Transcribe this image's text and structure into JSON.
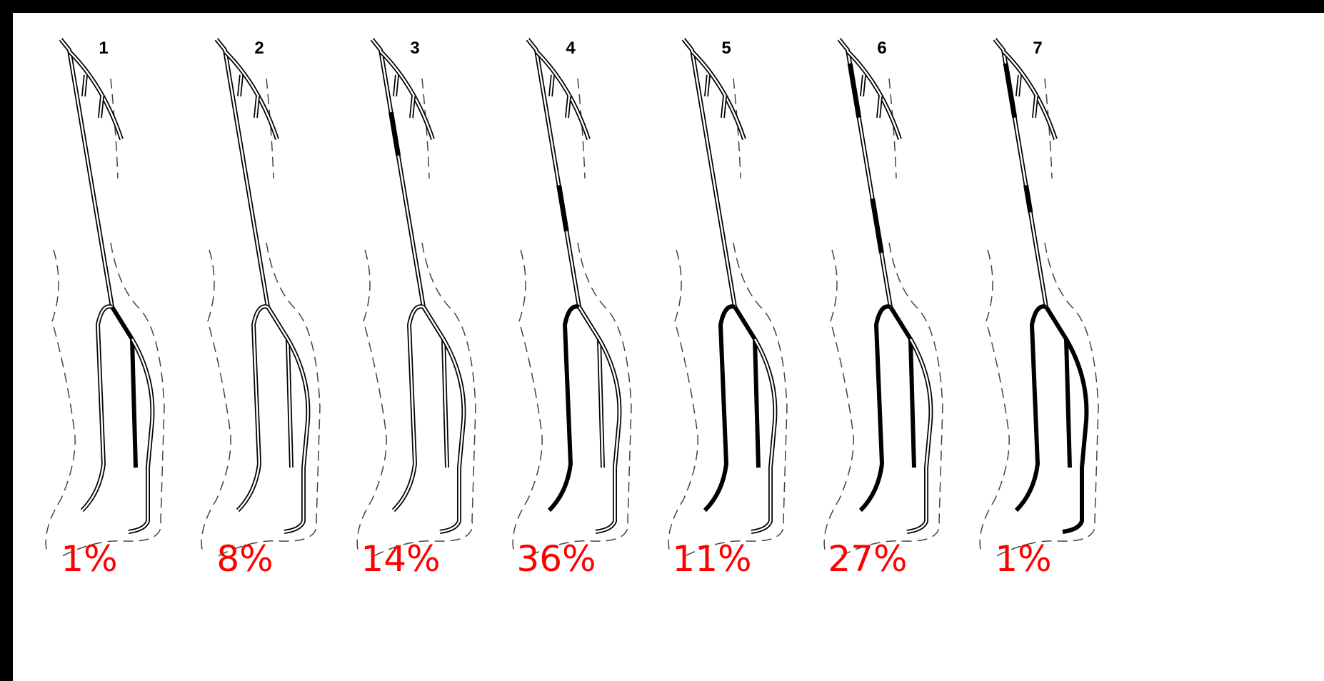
{
  "panels": [
    {
      "label": "1",
      "percent": "1%"
    },
    {
      "label": "2",
      "percent": "8%"
    },
    {
      "label": "3",
      "percent": "14%"
    },
    {
      "label": "4",
      "percent": "36%"
    },
    {
      "label": "5",
      "percent": "11%"
    },
    {
      "label": "6",
      "percent": "27%"
    },
    {
      "label": "7",
      "percent": "1%"
    }
  ]
}
